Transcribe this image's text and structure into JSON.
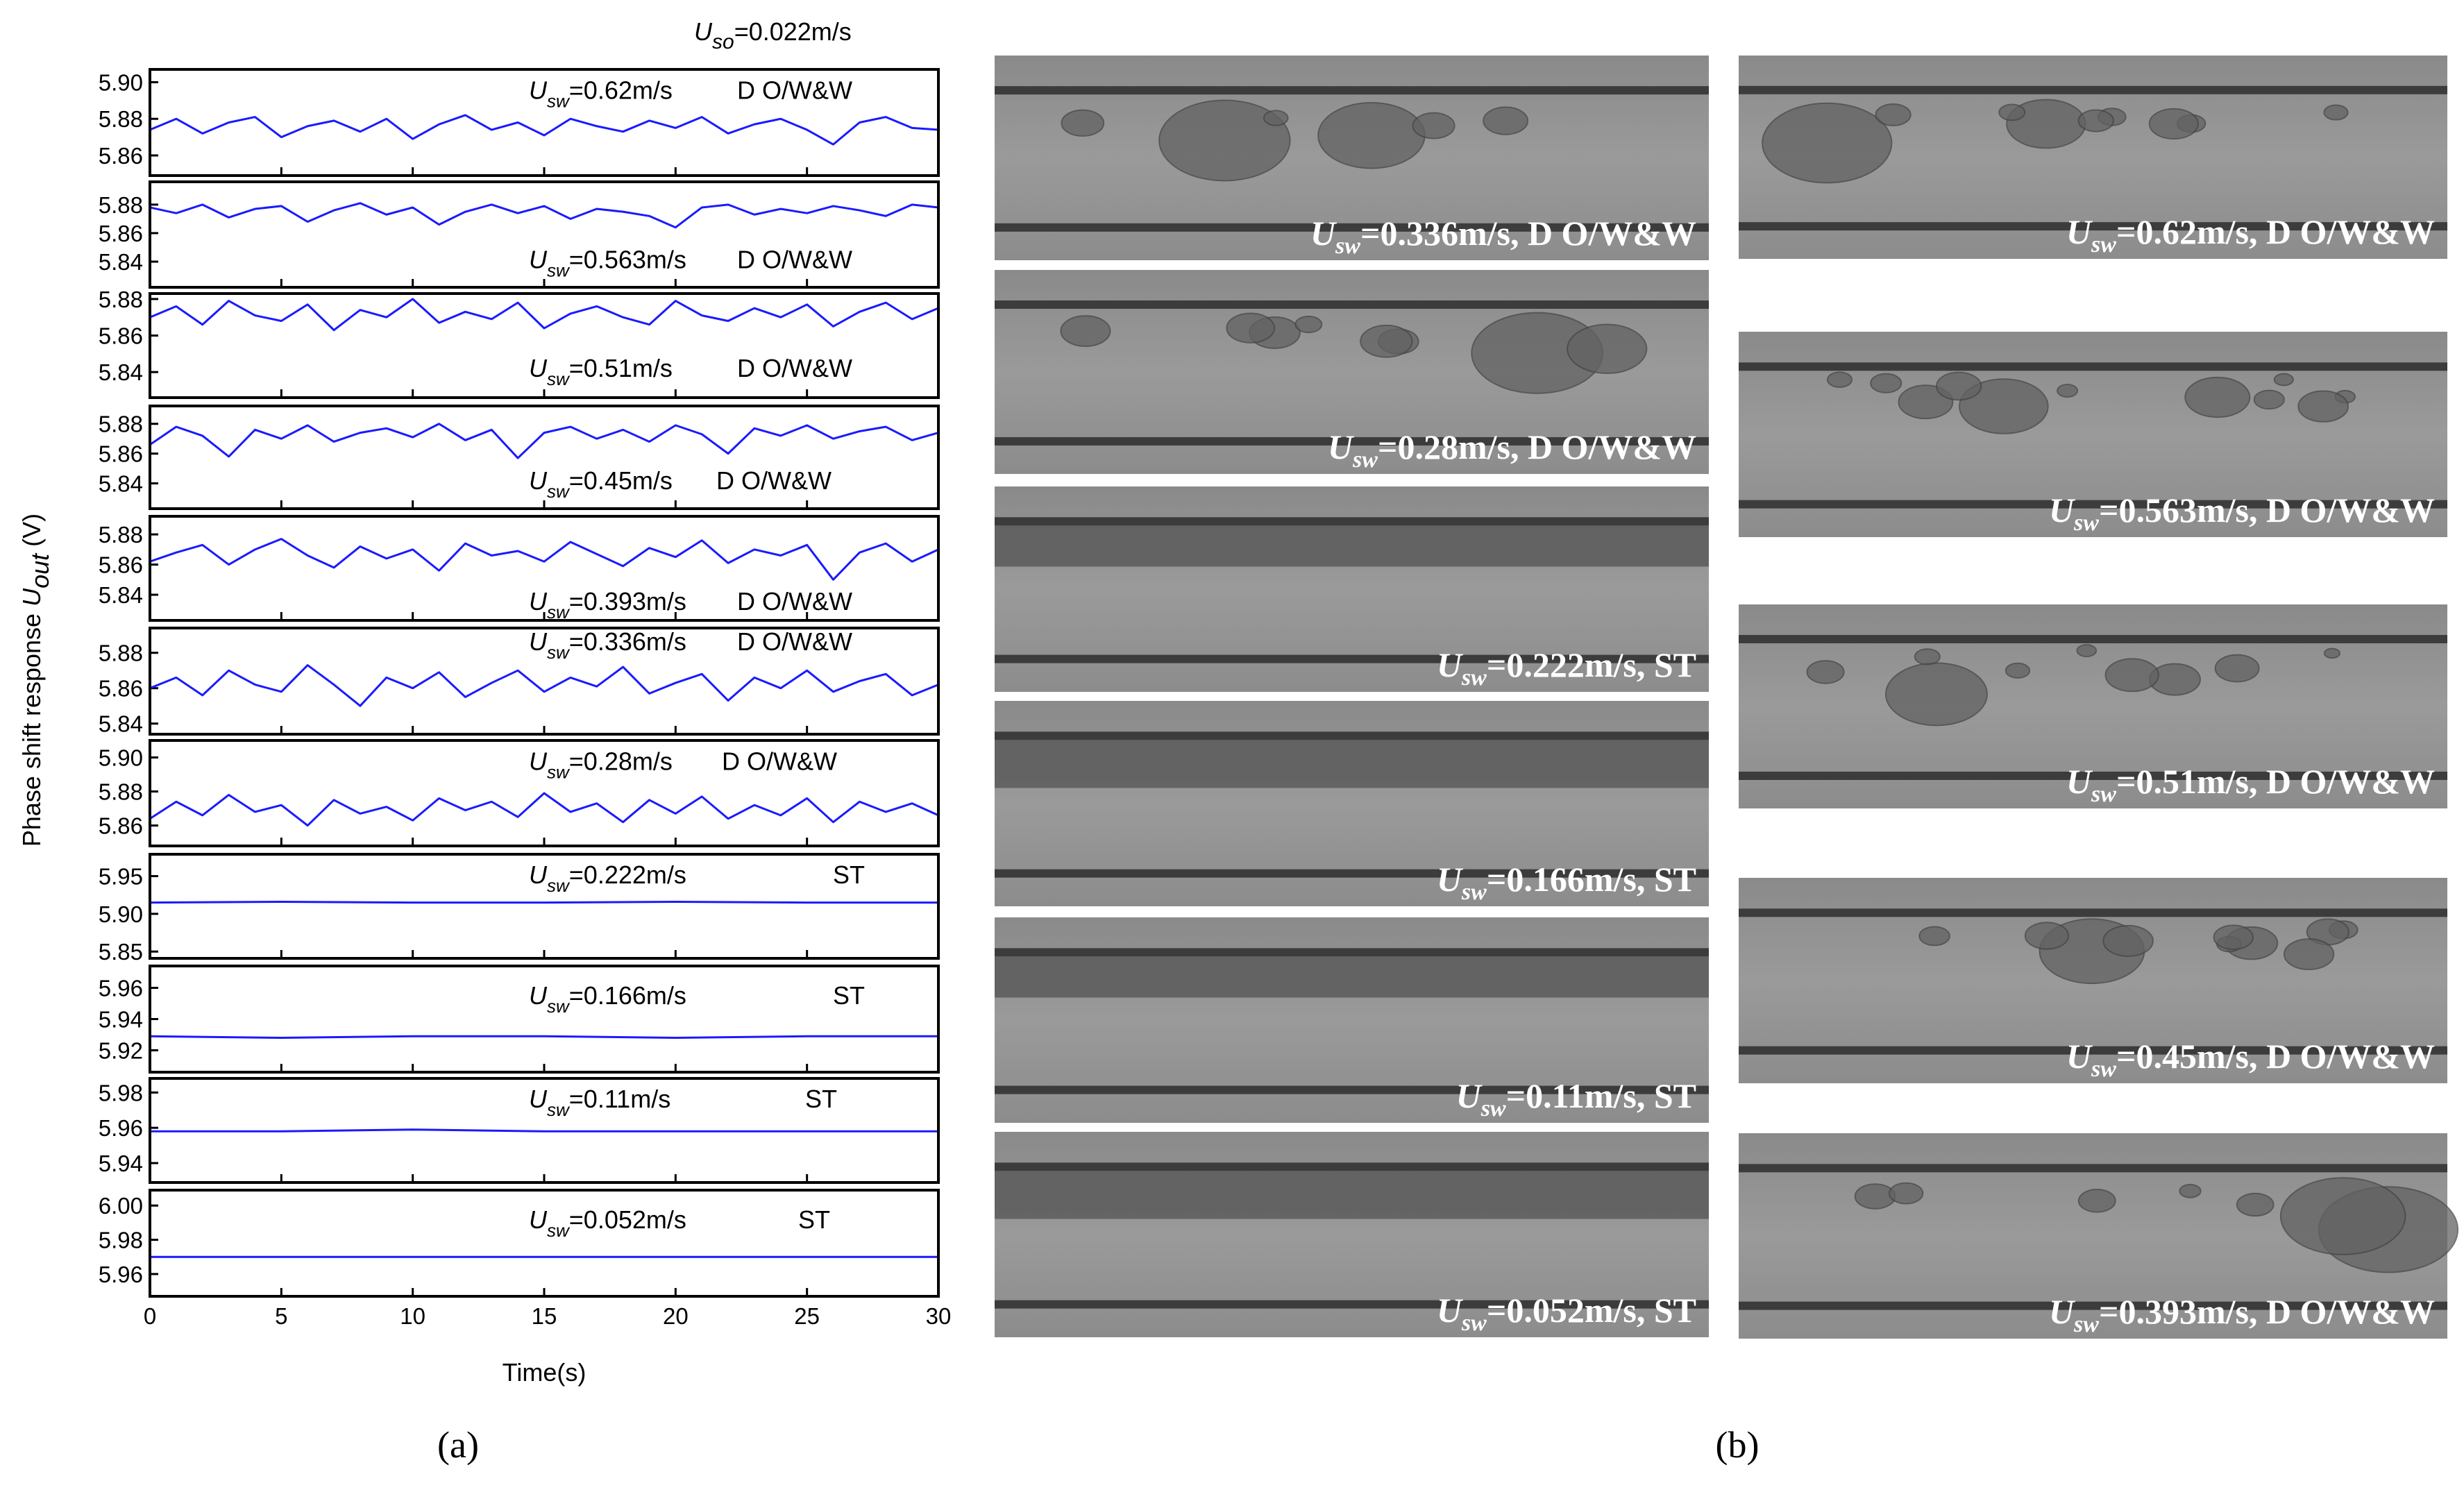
{
  "header": {
    "symbol": "U",
    "sub": "so",
    "rest": "=0.022m/s"
  },
  "ylabel": {
    "text": "Phase shift response ",
    "symbol": "U",
    "sub": "out",
    "unit": " (V)"
  },
  "xlabel": "Time(s)",
  "panel_labels": [
    "(a)",
    "(b)"
  ],
  "chart_data": [
    {
      "type": "line",
      "color": "#1a1aff",
      "annotation": {
        "symbol": "U",
        "sub": "sw",
        "rest": "=0.62m/s",
        "regime": "D O/W&W"
      },
      "x": [
        0,
        1,
        2,
        3,
        4,
        5,
        6,
        7,
        8,
        9,
        10,
        11,
        12,
        13,
        14,
        15,
        16,
        17,
        18,
        19,
        20,
        21,
        22,
        23,
        24,
        25,
        26,
        27,
        28,
        29,
        30
      ],
      "values": [
        5.874,
        5.88,
        5.872,
        5.878,
        5.881,
        5.87,
        5.876,
        5.879,
        5.873,
        5.88,
        5.869,
        5.877,
        5.882,
        5.874,
        5.878,
        5.871,
        5.88,
        5.876,
        5.873,
        5.879,
        5.875,
        5.881,
        5.872,
        5.877,
        5.88,
        5.874,
        5.866,
        5.878,
        5.881,
        5.875,
        5.874
      ],
      "xlim": [
        0,
        30
      ],
      "xticks": [
        0,
        5,
        10,
        15,
        20,
        25,
        30
      ],
      "ylim": [
        5.849,
        5.907
      ],
      "yticks": [
        {
          "value": 5.86,
          "label": "5.86"
        },
        {
          "value": 5.88,
          "label": "5.88"
        },
        {
          "value": 5.9,
          "label": "5.90"
        }
      ]
    },
    {
      "type": "line",
      "color": "#1a1aff",
      "annotation": {
        "symbol": "U",
        "sub": "sw",
        "rest": "=0.563m/s",
        "regime": "D O/W&W"
      },
      "x": [
        0,
        1,
        2,
        3,
        4,
        5,
        6,
        7,
        8,
        9,
        10,
        11,
        12,
        13,
        14,
        15,
        16,
        17,
        18,
        19,
        20,
        21,
        22,
        23,
        24,
        25,
        26,
        27,
        28,
        29,
        30
      ],
      "values": [
        5.878,
        5.874,
        5.88,
        5.871,
        5.877,
        5.879,
        5.868,
        5.876,
        5.881,
        5.873,
        5.878,
        5.866,
        5.875,
        5.88,
        5.874,
        5.879,
        5.87,
        5.877,
        5.875,
        5.872,
        5.864,
        5.878,
        5.88,
        5.873,
        5.877,
        5.874,
        5.879,
        5.876,
        5.872,
        5.88,
        5.878
      ],
      "xlim": [
        0,
        30
      ],
      "xticks": [
        0,
        5,
        10,
        15,
        20,
        25,
        30
      ],
      "ylim": [
        5.822,
        5.896
      ],
      "yticks": [
        5.84,
        5.86,
        5.88
      ]
    },
    {
      "type": "line",
      "color": "#1a1aff",
      "annotation": {
        "symbol": "U",
        "sub": "sw",
        "rest": "=0.51m/s",
        "regime": "D O/W&W"
      },
      "x": [
        0,
        1,
        2,
        3,
        4,
        5,
        6,
        7,
        8,
        9,
        10,
        11,
        12,
        13,
        14,
        15,
        16,
        17,
        18,
        19,
        20,
        21,
        22,
        23,
        24,
        25,
        26,
        27,
        28,
        29,
        30
      ],
      "values": [
        5.87,
        5.876,
        5.866,
        5.879,
        5.871,
        5.868,
        5.877,
        5.863,
        5.874,
        5.87,
        5.88,
        5.867,
        5.873,
        5.869,
        5.878,
        5.864,
        5.872,
        5.876,
        5.87,
        5.866,
        5.879,
        5.871,
        5.868,
        5.875,
        5.87,
        5.877,
        5.865,
        5.873,
        5.878,
        5.869,
        5.875
      ],
      "xlim": [
        0,
        30
      ],
      "xticks": [
        0,
        5,
        10,
        15,
        20,
        25,
        30
      ],
      "ylim": [
        5.826,
        5.883
      ],
      "yticks": [
        5.84,
        5.86,
        5.88
      ]
    },
    {
      "type": "line",
      "color": "#1a1aff",
      "annotation": {
        "symbol": "U",
        "sub": "sw",
        "rest": "=0.45m/s",
        "regime": "D O/W&W"
      },
      "x": [
        0,
        1,
        2,
        3,
        4,
        5,
        6,
        7,
        8,
        9,
        10,
        11,
        12,
        13,
        14,
        15,
        16,
        17,
        18,
        19,
        20,
        21,
        22,
        23,
        24,
        25,
        26,
        27,
        28,
        29,
        30
      ],
      "values": [
        5.866,
        5.878,
        5.872,
        5.858,
        5.876,
        5.87,
        5.879,
        5.868,
        5.874,
        5.877,
        5.871,
        5.88,
        5.869,
        5.876,
        5.857,
        5.874,
        5.878,
        5.87,
        5.876,
        5.868,
        5.879,
        5.873,
        5.86,
        5.877,
        5.872,
        5.879,
        5.87,
        5.875,
        5.878,
        5.869,
        5.874
      ],
      "xlim": [
        0,
        30
      ],
      "xticks": [
        0,
        5,
        10,
        15,
        20,
        25,
        30
      ],
      "ylim": [
        5.823,
        5.892
      ],
      "yticks": [
        5.84,
        5.86,
        5.88
      ]
    },
    {
      "type": "line",
      "color": "#1a1aff",
      "annotation": {
        "symbol": "U",
        "sub": "sw",
        "rest": "=0.393m/s",
        "regime": "D O/W&W"
      },
      "x": [
        0,
        1,
        2,
        3,
        4,
        5,
        6,
        7,
        8,
        9,
        10,
        11,
        12,
        13,
        14,
        15,
        16,
        17,
        18,
        19,
        20,
        21,
        22,
        23,
        24,
        25,
        26,
        27,
        28,
        29,
        30
      ],
      "values": [
        5.862,
        5.868,
        5.873,
        5.86,
        5.87,
        5.877,
        5.866,
        5.858,
        5.872,
        5.864,
        5.87,
        5.856,
        5.874,
        5.866,
        5.869,
        5.862,
        5.875,
        5.867,
        5.859,
        5.871,
        5.865,
        5.876,
        5.861,
        5.87,
        5.866,
        5.873,
        5.85,
        5.868,
        5.874,
        5.862,
        5.87
      ],
      "xlim": [
        0,
        30
      ],
      "xticks": [
        0,
        5,
        10,
        15,
        20,
        25,
        30
      ],
      "ylim": [
        5.823,
        5.892
      ],
      "yticks": [
        5.84,
        5.86,
        5.88
      ]
    },
    {
      "type": "line",
      "color": "#1a1aff",
      "annotation": {
        "symbol": "U",
        "sub": "sw",
        "rest": "=0.336m/s",
        "regime": "D O/W&W"
      },
      "x": [
        0,
        1,
        2,
        3,
        4,
        5,
        6,
        7,
        8,
        9,
        10,
        11,
        12,
        13,
        14,
        15,
        16,
        17,
        18,
        19,
        20,
        21,
        22,
        23,
        24,
        25,
        26,
        27,
        28,
        29,
        30
      ],
      "values": [
        5.86,
        5.866,
        5.856,
        5.87,
        5.862,
        5.858,
        5.873,
        5.862,
        5.85,
        5.866,
        5.86,
        5.869,
        5.855,
        5.863,
        5.87,
        5.858,
        5.866,
        5.861,
        5.872,
        5.857,
        5.863,
        5.868,
        5.853,
        5.866,
        5.86,
        5.87,
        5.858,
        5.864,
        5.868,
        5.856,
        5.862
      ],
      "xlim": [
        0,
        30
      ],
      "xticks": [
        0,
        5,
        10,
        15,
        20,
        25,
        30
      ],
      "ylim": [
        5.834,
        5.894
      ],
      "yticks": [
        5.84,
        5.86,
        5.88
      ]
    },
    {
      "type": "line",
      "color": "#1a1aff",
      "annotation": {
        "symbol": "U",
        "sub": "sw",
        "rest": "=0.28m/s",
        "regime": "D O/W&W"
      },
      "x": [
        0,
        1,
        2,
        3,
        4,
        5,
        6,
        7,
        8,
        9,
        10,
        11,
        12,
        13,
        14,
        15,
        16,
        17,
        18,
        19,
        20,
        21,
        22,
        23,
        24,
        25,
        26,
        27,
        28,
        29,
        30
      ],
      "values": [
        5.864,
        5.874,
        5.866,
        5.878,
        5.868,
        5.872,
        5.86,
        5.875,
        5.867,
        5.871,
        5.863,
        5.876,
        5.869,
        5.874,
        5.865,
        5.879,
        5.868,
        5.873,
        5.862,
        5.875,
        5.867,
        5.877,
        5.864,
        5.872,
        5.866,
        5.876,
        5.862,
        5.874,
        5.868,
        5.873,
        5.866
      ],
      "xlim": [
        0,
        30
      ],
      "xticks": [
        0,
        5,
        10,
        15,
        20,
        25,
        30
      ],
      "ylim": [
        5.848,
        5.91
      ],
      "yticks": [
        5.86,
        5.88,
        {
          "value": 5.9,
          "label": "5.90"
        }
      ]
    },
    {
      "type": "line",
      "color": "#1a1aff",
      "annotation": {
        "symbol": "U",
        "sub": "sw",
        "rest": "=0.222m/s",
        "regime": "ST"
      },
      "x": [
        0,
        5,
        10,
        15,
        20,
        25,
        30
      ],
      "values": [
        5.915,
        5.916,
        5.915,
        5.915,
        5.916,
        5.915,
        5.915
      ],
      "xlim": [
        0,
        30
      ],
      "xticks": [
        0,
        5,
        10,
        15,
        20,
        25,
        30
      ],
      "ylim": [
        5.841,
        5.979
      ],
      "yticks": [
        5.85,
        {
          "value": 5.9,
          "label": "5.90"
        },
        5.95
      ]
    },
    {
      "type": "line",
      "color": "#1a1aff",
      "annotation": {
        "symbol": "U",
        "sub": "sw",
        "rest": "=0.166m/s",
        "regime": "ST"
      },
      "x": [
        0,
        5,
        10,
        15,
        20,
        25,
        30
      ],
      "values": [
        5.929,
        5.928,
        5.929,
        5.929,
        5.928,
        5.929,
        5.929
      ],
      "xlim": [
        0,
        30
      ],
      "xticks": [
        0,
        5,
        10,
        15,
        20,
        25,
        30
      ],
      "ylim": [
        5.906,
        5.974
      ],
      "yticks": [
        5.92,
        5.94,
        5.96
      ]
    },
    {
      "type": "line",
      "color": "#1a1aff",
      "annotation": {
        "symbol": "U",
        "sub": "sw",
        "rest": "=0.11m/s",
        "regime": "ST"
      },
      "x": [
        0,
        5,
        10,
        15,
        20,
        25,
        30
      ],
      "values": [
        5.958,
        5.958,
        5.959,
        5.958,
        5.958,
        5.958,
        5.958
      ],
      "xlim": [
        0,
        30
      ],
      "xticks": [
        0,
        5,
        10,
        15,
        20,
        25,
        30
      ],
      "ylim": [
        5.929,
        5.988
      ],
      "yticks": [
        5.94,
        5.96,
        5.98
      ]
    },
    {
      "type": "line",
      "color": "#1a1aff",
      "annotation": {
        "symbol": "U",
        "sub": "sw",
        "rest": "=0.052m/s",
        "regime": "ST"
      },
      "x": [
        0,
        5,
        10,
        15,
        20,
        25,
        30
      ],
      "values": [
        5.97,
        5.97,
        5.97,
        5.97,
        5.97,
        5.97,
        5.97
      ],
      "xlim": [
        0,
        30
      ],
      "xticks": [
        0,
        5,
        10,
        15,
        20,
        25,
        30
      ],
      "ylim": [
        5.947,
        6.009
      ],
      "yticks": [
        5.96,
        5.98,
        {
          "value": 6.0,
          "label": "6.00"
        }
      ]
    }
  ],
  "photos": [
    {
      "symbol": "U",
      "sub": "sw",
      "rest": "=0.336m/s, D O/W&W"
    },
    {
      "symbol": "U",
      "sub": "sw",
      "rest": "=0.28m/s, D O/W&W"
    },
    {
      "symbol": "U",
      "sub": "sw",
      "rest": "=0.222m/s, ST"
    },
    {
      "symbol": "U",
      "sub": "sw",
      "rest": "=0.166m/s, ST"
    },
    {
      "symbol": "U",
      "sub": "sw",
      "rest": "=0.11m/s, ST"
    },
    {
      "symbol": "U",
      "sub": "sw",
      "rest": "=0.052m/s, ST"
    },
    {
      "symbol": "U",
      "sub": "sw",
      "rest": "=0.62m/s, D O/W&W"
    },
    {
      "symbol": "U",
      "sub": "sw",
      "rest": "=0.563m/s, D O/W&W"
    },
    {
      "symbol": "U",
      "sub": "sw",
      "rest": "=0.51m/s, D O/W&W"
    },
    {
      "symbol": "U",
      "sub": "sw",
      "rest": "=0.45m/s, D O/W&W"
    },
    {
      "symbol": "U",
      "sub": "sw",
      "rest": "=0.393m/s, D O/W&W"
    }
  ]
}
